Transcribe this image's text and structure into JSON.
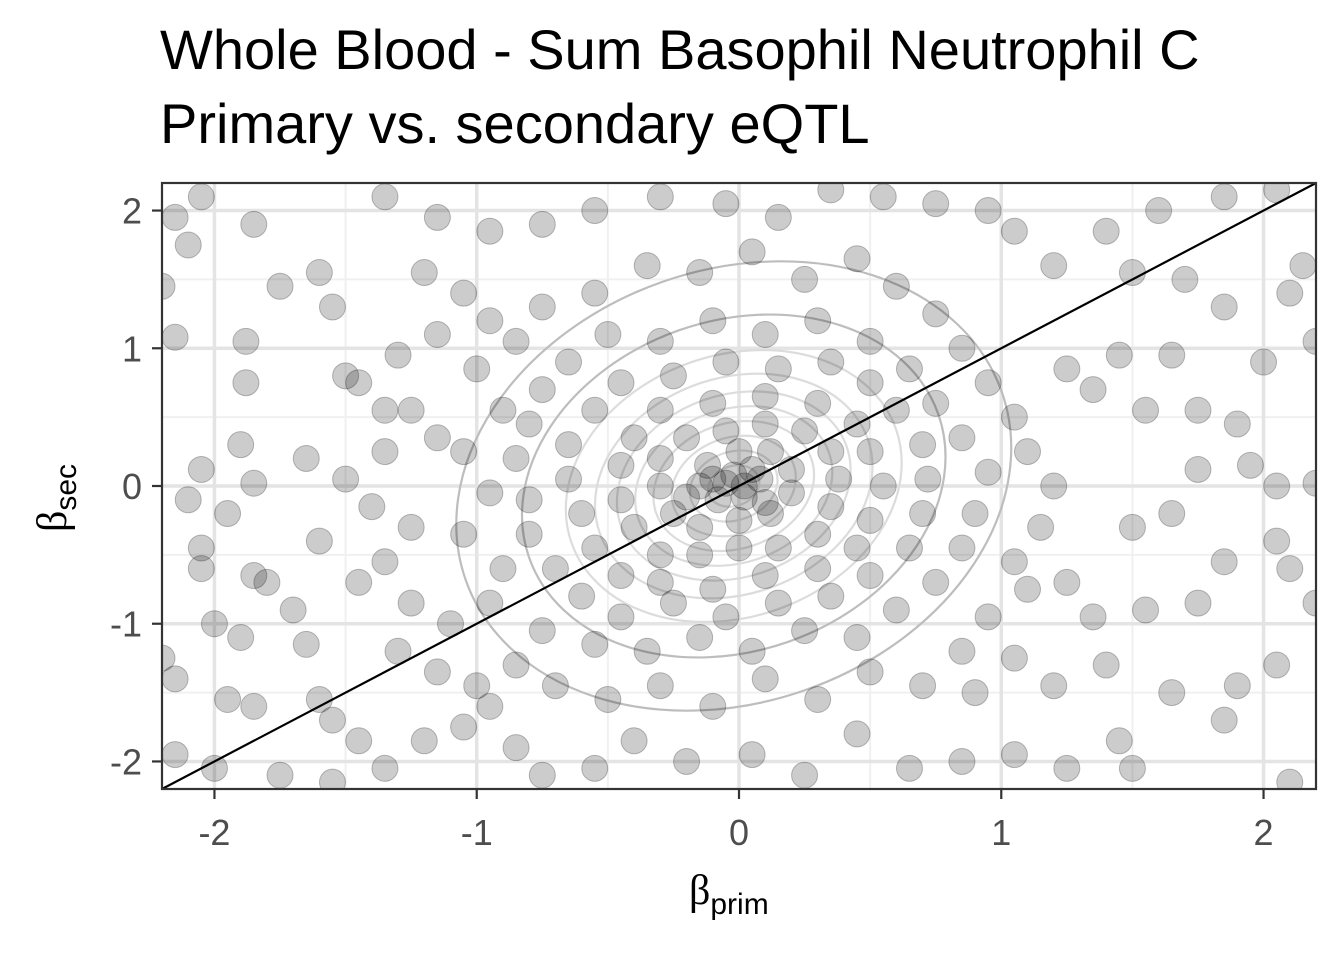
{
  "chart_data": {
    "type": "scatter",
    "title": "Whole Blood - Sum Basophil Neutrophil C",
    "subtitle": "Primary vs. secondary eQTL",
    "xlabel": {
      "symbol": "β",
      "sub": "prim"
    },
    "ylabel": {
      "symbol": "β",
      "sub": "sec"
    },
    "xlim": [
      -2.2,
      2.2
    ],
    "ylim": [
      -2.2,
      2.2
    ],
    "xticks": [
      -2,
      -1,
      0,
      1,
      2
    ],
    "yticks": [
      -2,
      -1,
      0,
      1,
      2
    ],
    "xtick_labels": [
      "-2",
      "-1",
      "0",
      "1",
      "2"
    ],
    "ytick_labels": [
      "-2",
      "-1",
      "0",
      "1",
      "2"
    ],
    "grid": true,
    "legend": "none",
    "point_color": "#000000",
    "point_opacity": 0.2,
    "reference_line": {
      "slope": 1,
      "intercept": 0,
      "color": "#000000"
    },
    "contour_color": "#bdbdbd",
    "density_center": [
      -0.02,
      0.0
    ],
    "density_sd": [
      0.38,
      0.35
    ],
    "density_correlation": 0.35,
    "point_count_estimate": 1500,
    "points": [
      [
        -2.05,
        2.1
      ],
      [
        -2.15,
        1.95
      ],
      [
        -1.85,
        1.9
      ],
      [
        -2.1,
        1.75
      ],
      [
        -1.75,
        1.45
      ],
      [
        -2.2,
        1.45
      ],
      [
        -2.15,
        1.08
      ],
      [
        -1.88,
        1.05
      ],
      [
        -1.88,
        0.75
      ],
      [
        -1.6,
        1.55
      ],
      [
        -1.55,
        1.3
      ],
      [
        -1.5,
        0.8
      ],
      [
        -1.35,
        0.55
      ],
      [
        -1.9,
        0.3
      ],
      [
        -2.05,
        0.12
      ],
      [
        -2.1,
        -0.1
      ],
      [
        -1.95,
        -0.2
      ],
      [
        -1.85,
        0.02
      ],
      [
        -1.65,
        0.2
      ],
      [
        -1.6,
        -0.4
      ],
      [
        -2.05,
        -0.45
      ],
      [
        -2.05,
        -0.6
      ],
      [
        -1.85,
        -0.65
      ],
      [
        -1.8,
        -0.7
      ],
      [
        -1.7,
        -0.9
      ],
      [
        -1.9,
        -1.1
      ],
      [
        -2.0,
        -1.0
      ],
      [
        -1.65,
        -1.15
      ],
      [
        -2.2,
        -1.25
      ],
      [
        -2.15,
        -1.4
      ],
      [
        -1.95,
        -1.55
      ],
      [
        -1.85,
        -1.6
      ],
      [
        -1.6,
        -1.55
      ],
      [
        -1.55,
        -1.7
      ],
      [
        -1.45,
        -1.85
      ],
      [
        -2.15,
        -1.95
      ],
      [
        -2.0,
        -2.05
      ],
      [
        -1.75,
        -2.1
      ],
      [
        -1.55,
        -2.15
      ],
      [
        -1.35,
        -2.05
      ],
      [
        -1.2,
        -1.85
      ],
      [
        -1.05,
        -1.75
      ],
      [
        -0.95,
        -1.6
      ],
      [
        -0.85,
        -1.9
      ],
      [
        -0.75,
        -2.1
      ],
      [
        -0.55,
        -2.05
      ],
      [
        -0.4,
        -1.85
      ],
      [
        -0.2,
        -2.0
      ],
      [
        0.05,
        -1.95
      ],
      [
        0.25,
        -2.1
      ],
      [
        0.45,
        -1.8
      ],
      [
        0.65,
        -2.05
      ],
      [
        0.85,
        -2.0
      ],
      [
        1.05,
        -1.95
      ],
      [
        1.25,
        -2.05
      ],
      [
        1.45,
        -1.85
      ],
      [
        1.5,
        -2.05
      ],
      [
        1.85,
        -1.7
      ],
      [
        2.1,
        -2.15
      ],
      [
        1.9,
        -1.45
      ],
      [
        1.65,
        -1.5
      ],
      [
        1.4,
        -1.3
      ],
      [
        1.2,
        -1.45
      ],
      [
        1.05,
        -1.25
      ],
      [
        0.9,
        -1.5
      ],
      [
        1.35,
        -0.95
      ],
      [
        1.55,
        -0.9
      ],
      [
        1.75,
        -0.85
      ],
      [
        1.85,
        -0.55
      ],
      [
        2.05,
        -0.4
      ],
      [
        2.1,
        -0.6
      ],
      [
        2.2,
        -0.85
      ],
      [
        2.05,
        -1.3
      ],
      [
        1.25,
        -0.7
      ],
      [
        1.1,
        -0.75
      ],
      [
        1.5,
        -0.3
      ],
      [
        1.65,
        -0.2
      ],
      [
        1.75,
        0.12
      ],
      [
        1.95,
        0.15
      ],
      [
        2.05,
        0.0
      ],
      [
        2.2,
        0.02
      ],
      [
        1.9,
        0.45
      ],
      [
        1.75,
        0.55
      ],
      [
        1.55,
        0.55
      ],
      [
        1.35,
        0.7
      ],
      [
        1.25,
        0.85
      ],
      [
        1.45,
        0.95
      ],
      [
        1.65,
        0.95
      ],
      [
        2.0,
        0.9
      ],
      [
        2.2,
        1.05
      ],
      [
        2.1,
        1.4
      ],
      [
        2.15,
        1.6
      ],
      [
        1.85,
        1.3
      ],
      [
        1.7,
        1.5
      ],
      [
        1.5,
        1.55
      ],
      [
        1.4,
        1.85
      ],
      [
        1.6,
        2.0
      ],
      [
        1.85,
        2.1
      ],
      [
        2.05,
        2.15
      ],
      [
        1.2,
        1.6
      ],
      [
        1.05,
        1.85
      ],
      [
        0.95,
        2.0
      ],
      [
        0.75,
        2.05
      ],
      [
        0.55,
        2.1
      ],
      [
        0.35,
        2.15
      ],
      [
        0.15,
        1.95
      ],
      [
        -0.05,
        2.05
      ],
      [
        -0.3,
        2.1
      ],
      [
        -0.55,
        2.0
      ],
      [
        -0.75,
        1.9
      ],
      [
        -0.95,
        1.85
      ],
      [
        -1.15,
        1.95
      ],
      [
        -1.35,
        2.1
      ],
      [
        -1.2,
        1.55
      ],
      [
        -1.05,
        1.4
      ],
      [
        -0.95,
        1.2
      ],
      [
        -1.15,
        1.1
      ],
      [
        -1.3,
        0.95
      ],
      [
        -1.45,
        0.75
      ],
      [
        -1.25,
        0.55
      ],
      [
        -1.15,
        0.35
      ],
      [
        -1.35,
        0.25
      ],
      [
        -1.5,
        0.05
      ],
      [
        -1.4,
        -0.15
      ],
      [
        -1.25,
        -0.3
      ],
      [
        -1.35,
        -0.55
      ],
      [
        -1.45,
        -0.7
      ],
      [
        -1.25,
        -0.85
      ],
      [
        -1.1,
        -1.0
      ],
      [
        -1.3,
        -1.2
      ],
      [
        -1.15,
        -1.35
      ],
      [
        -1.0,
        -1.45
      ],
      [
        -0.85,
        -1.3
      ],
      [
        -0.7,
        -1.45
      ],
      [
        -0.5,
        -1.55
      ],
      [
        -0.3,
        -1.45
      ],
      [
        -0.1,
        -1.6
      ],
      [
        0.1,
        -1.4
      ],
      [
        0.3,
        -1.55
      ],
      [
        0.5,
        -1.35
      ],
      [
        0.7,
        -1.45
      ],
      [
        0.85,
        -1.2
      ],
      [
        0.95,
        -0.95
      ],
      [
        1.05,
        -0.55
      ],
      [
        1.15,
        -0.3
      ],
      [
        1.2,
        0.0
      ],
      [
        1.1,
        0.25
      ],
      [
        1.05,
        0.5
      ],
      [
        0.95,
        0.75
      ],
      [
        0.85,
        1.0
      ],
      [
        0.75,
        1.25
      ],
      [
        0.6,
        1.45
      ],
      [
        0.45,
        1.65
      ],
      [
        0.25,
        1.5
      ],
      [
        0.05,
        1.7
      ],
      [
        -0.15,
        1.55
      ],
      [
        -0.35,
        1.6
      ],
      [
        -0.55,
        1.4
      ],
      [
        -0.75,
        1.3
      ],
      [
        -0.85,
        1.05
      ],
      [
        -1.0,
        0.85
      ],
      [
        -0.9,
        0.55
      ],
      [
        -1.05,
        0.25
      ],
      [
        -0.95,
        -0.05
      ],
      [
        -1.05,
        -0.35
      ],
      [
        -0.9,
        -0.6
      ],
      [
        -0.95,
        -0.85
      ],
      [
        -0.75,
        -1.05
      ],
      [
        -0.55,
        -1.15
      ],
      [
        -0.35,
        -1.2
      ],
      [
        -0.15,
        -1.1
      ],
      [
        0.05,
        -1.2
      ],
      [
        0.25,
        -1.05
      ],
      [
        0.45,
        -1.1
      ],
      [
        0.6,
        -0.9
      ],
      [
        0.75,
        -0.7
      ],
      [
        0.85,
        -0.45
      ],
      [
        0.9,
        -0.2
      ],
      [
        0.95,
        0.1
      ],
      [
        0.85,
        0.35
      ],
      [
        0.75,
        0.6
      ],
      [
        0.65,
        0.85
      ],
      [
        0.5,
        1.05
      ],
      [
        0.3,
        1.2
      ],
      [
        0.1,
        1.1
      ],
      [
        -0.1,
        1.2
      ],
      [
        -0.3,
        1.05
      ],
      [
        -0.5,
        1.1
      ],
      [
        -0.65,
        0.9
      ],
      [
        -0.75,
        0.7
      ],
      [
        -0.8,
        0.45
      ],
      [
        -0.85,
        0.2
      ],
      [
        -0.8,
        -0.1
      ],
      [
        -0.8,
        -0.35
      ],
      [
        -0.7,
        -0.6
      ],
      [
        -0.6,
        -0.8
      ],
      [
        -0.45,
        -0.95
      ],
      [
        -0.25,
        -0.85
      ],
      [
        -0.05,
        -0.95
      ],
      [
        0.15,
        -0.85
      ],
      [
        0.35,
        -0.8
      ],
      [
        0.5,
        -0.65
      ],
      [
        0.65,
        -0.45
      ],
      [
        0.7,
        -0.2
      ],
      [
        0.72,
        0.05
      ],
      [
        0.7,
        0.3
      ],
      [
        0.6,
        0.55
      ],
      [
        0.5,
        0.75
      ],
      [
        0.35,
        0.9
      ],
      [
        0.15,
        0.85
      ],
      [
        -0.05,
        0.9
      ],
      [
        -0.25,
        0.8
      ],
      [
        -0.45,
        0.75
      ],
      [
        -0.55,
        0.55
      ],
      [
        -0.65,
        0.3
      ],
      [
        -0.65,
        0.05
      ],
      [
        -0.6,
        -0.2
      ],
      [
        -0.55,
        -0.45
      ],
      [
        -0.45,
        -0.65
      ],
      [
        -0.3,
        -0.7
      ],
      [
        -0.1,
        -0.75
      ],
      [
        0.1,
        -0.65
      ],
      [
        0.3,
        -0.6
      ],
      [
        0.45,
        -0.45
      ],
      [
        0.5,
        -0.25
      ],
      [
        0.55,
        0.0
      ],
      [
        0.5,
        0.25
      ],
      [
        0.45,
        0.45
      ],
      [
        0.3,
        0.6
      ],
      [
        0.1,
        0.65
      ],
      [
        -0.1,
        0.6
      ],
      [
        -0.3,
        0.55
      ],
      [
        -0.4,
        0.35
      ],
      [
        -0.45,
        0.15
      ],
      [
        -0.45,
        -0.1
      ],
      [
        -0.4,
        -0.3
      ],
      [
        -0.3,
        -0.5
      ],
      [
        -0.15,
        -0.5
      ],
      [
        0.0,
        -0.45
      ],
      [
        0.15,
        -0.45
      ],
      [
        0.3,
        -0.35
      ],
      [
        0.35,
        -0.15
      ],
      [
        0.38,
        0.05
      ],
      [
        0.35,
        0.25
      ],
      [
        0.25,
        0.4
      ],
      [
        0.1,
        0.45
      ],
      [
        -0.05,
        0.4
      ],
      [
        -0.2,
        0.35
      ],
      [
        -0.3,
        0.2
      ],
      [
        -0.3,
        0.0
      ],
      [
        -0.25,
        -0.2
      ],
      [
        -0.15,
        -0.3
      ],
      [
        0.0,
        -0.25
      ],
      [
        0.12,
        -0.2
      ],
      [
        0.2,
        -0.05
      ],
      [
        0.2,
        0.12
      ],
      [
        0.12,
        0.25
      ],
      [
        0.0,
        0.25
      ],
      [
        -0.12,
        0.15
      ],
      [
        -0.15,
        0.0
      ],
      [
        -0.08,
        -0.1
      ],
      [
        0.02,
        -0.08
      ],
      [
        0.08,
        0.05
      ],
      [
        -0.02,
        0.08
      ],
      [
        -0.05,
        0.02
      ],
      [
        0.02,
        0.0
      ],
      [
        -0.1,
        0.05
      ],
      [
        0.05,
        0.12
      ],
      [
        -0.2,
        -0.08
      ],
      [
        0.1,
        -0.12
      ]
    ]
  }
}
